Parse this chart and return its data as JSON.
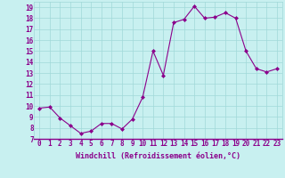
{
  "x": [
    0,
    1,
    2,
    3,
    4,
    5,
    6,
    7,
    8,
    9,
    10,
    11,
    12,
    13,
    14,
    15,
    16,
    17,
    18,
    19,
    20,
    21,
    22,
    23
  ],
  "y": [
    9.8,
    9.9,
    8.9,
    8.2,
    7.5,
    7.7,
    8.4,
    8.4,
    7.9,
    8.8,
    10.8,
    15.0,
    12.8,
    17.6,
    17.9,
    19.1,
    18.0,
    18.1,
    18.5,
    18.0,
    15.0,
    13.4,
    13.1,
    13.4
  ],
  "line_color": "#8B008B",
  "marker": "D",
  "marker_size": 2.0,
  "bg_color": "#c8f0f0",
  "grid_color": "#a0d8d8",
  "xlabel": "Windchill (Refroidissement éolien,°C)",
  "xlim": [
    -0.5,
    23.5
  ],
  "ylim": [
    7,
    19.5
  ],
  "yticks": [
    7,
    8,
    9,
    10,
    11,
    12,
    13,
    14,
    15,
    16,
    17,
    18,
    19
  ],
  "xticks": [
    0,
    1,
    2,
    3,
    4,
    5,
    6,
    7,
    8,
    9,
    10,
    11,
    12,
    13,
    14,
    15,
    16,
    17,
    18,
    19,
    20,
    21,
    22,
    23
  ],
  "font_color": "#8B008B",
  "xlabel_fontsize": 6.0,
  "tick_fontsize": 5.5,
  "linewidth": 0.8
}
